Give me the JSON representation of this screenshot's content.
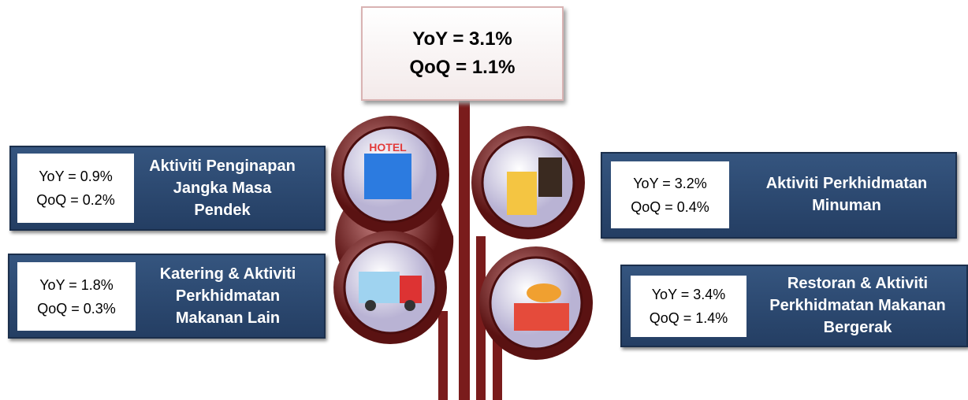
{
  "summary": {
    "yoy": "YoY = 3.1%",
    "qoq": "QoQ = 1.1%"
  },
  "items": [
    {
      "label_lines": [
        "Aktiviti Penginapan",
        "Jangka Masa",
        "Pendek"
      ],
      "yoy": "YoY = 0.9%",
      "qoq": "QoQ = 0.2%"
    },
    {
      "label_lines": [
        "Aktiviti Perkhidmatan",
        "Minuman"
      ],
      "yoy": "YoY = 3.2%",
      "qoq": "QoQ = 0.4%"
    },
    {
      "label_lines": [
        "Katering & Aktiviti",
        "Perkhidmatan",
        "Makanan Lain"
      ],
      "yoy": "YoY = 1.8%",
      "qoq": "QoQ = 0.3%"
    },
    {
      "label_lines": [
        "Restoran & Aktiviti",
        "Perkhidmatan Makanan",
        "Bergerak"
      ],
      "yoy": "YoY = 3.4%",
      "qoq": "QoQ = 1.4%"
    }
  ]
}
